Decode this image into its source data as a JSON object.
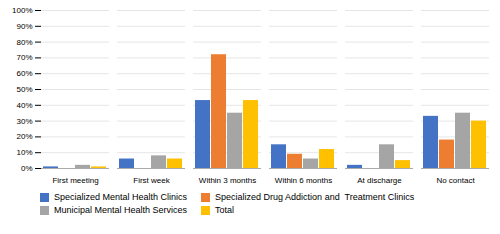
{
  "chart_data": {
    "type": "bar",
    "categories": [
      "First meeting",
      "First week",
      "Within 3 months",
      "Within 6 months",
      "At discharge",
      "No contact"
    ],
    "series": [
      {
        "name": "Specialized Mental Health Clinics",
        "color": "#4472C4",
        "values": [
          1,
          6,
          43,
          15,
          2,
          33
        ]
      },
      {
        "name": "Specialized Drug Addiction and  Treatment Clinics",
        "color": "#ED7D31",
        "values": [
          0,
          0,
          72,
          9,
          0,
          18
        ]
      },
      {
        "name": "Municipal Mental Health Services",
        "color": "#A5A5A5",
        "values": [
          2,
          8,
          35,
          6,
          15,
          35
        ]
      },
      {
        "name": "Total",
        "color": "#FFC000",
        "values": [
          1,
          6,
          43,
          12,
          5,
          30
        ]
      }
    ],
    "ylim": [
      0,
      100
    ],
    "yticks": [
      {
        "value": 0,
        "label": "0%"
      },
      {
        "value": 10,
        "label": "10%"
      },
      {
        "value": 20,
        "label": "20%"
      },
      {
        "value": 30,
        "label": "30%"
      },
      {
        "value": 40,
        "label": "40%"
      },
      {
        "value": 50,
        "label": "50%"
      },
      {
        "value": 60,
        "label": "60%"
      },
      {
        "value": 70,
        "label": "70%"
      },
      {
        "value": 80,
        "label": "80%"
      },
      {
        "value": 90,
        "label": "90%"
      },
      {
        "value": 100,
        "label": "100%"
      }
    ],
    "grid": true,
    "legend": "bottom"
  }
}
